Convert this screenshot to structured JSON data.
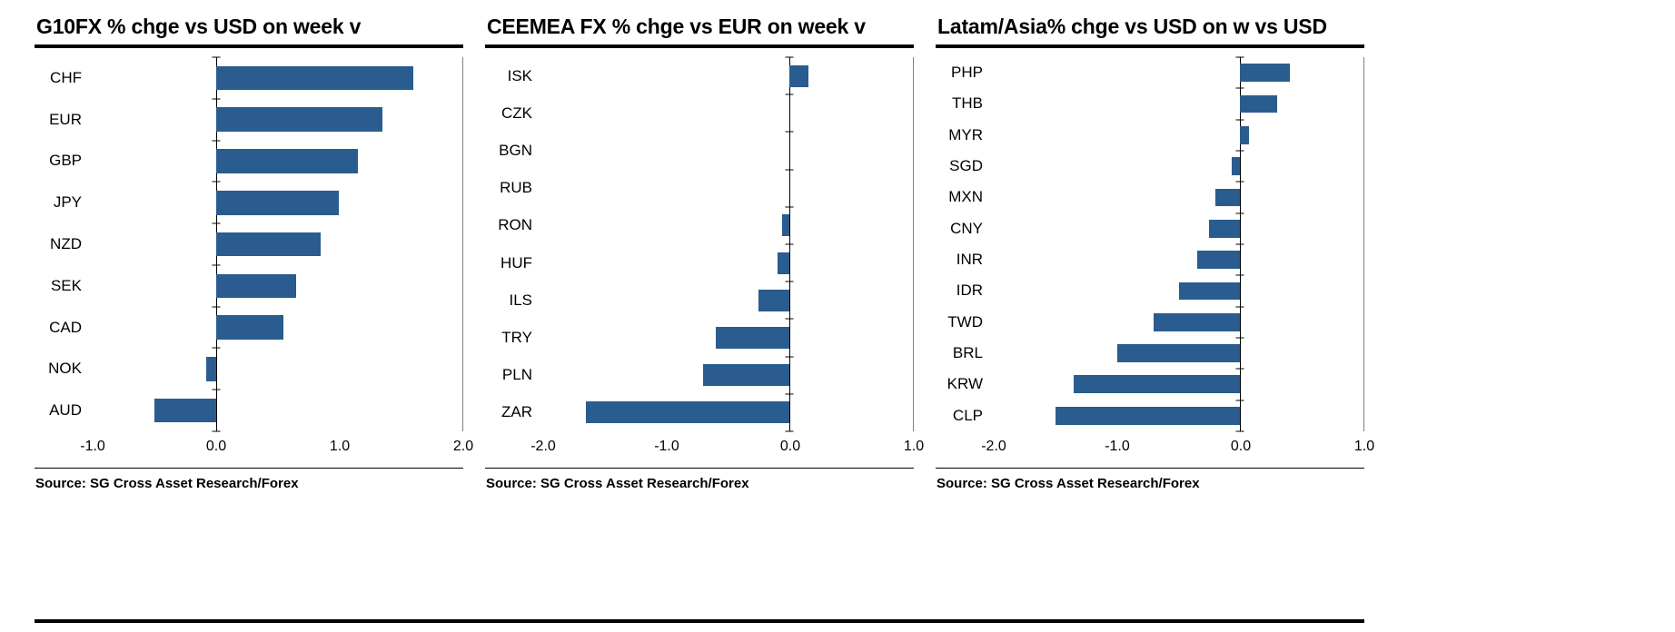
{
  "bar_color": "#2a5c8f",
  "axis_color": "#000000",
  "chart_data": [
    {
      "type": "bar",
      "orientation": "horizontal",
      "title": "G10FX % chge vs USD on week v",
      "categories": [
        "CHF",
        "EUR",
        "GBP",
        "JPY",
        "NZD",
        "SEK",
        "CAD",
        "NOK",
        "AUD"
      ],
      "values": [
        1.6,
        1.35,
        1.15,
        1.0,
        0.85,
        0.65,
        0.55,
        -0.08,
        -0.5
      ],
      "xlim": [
        -1.0,
        2.0
      ],
      "xticks": [
        -1.0,
        0.0,
        1.0,
        2.0
      ],
      "xtick_labels": [
        "-1.0",
        "0.0",
        "1.0",
        "2.0"
      ],
      "grid": false,
      "legend": false,
      "source": "Source: SG Cross Asset Research/Forex"
    },
    {
      "type": "bar",
      "orientation": "horizontal",
      "title": "CEEMEA FX % chge vs EUR on week v",
      "categories": [
        "ISK",
        "CZK",
        "BGN",
        "RUB",
        "RON",
        "HUF",
        "ILS",
        "TRY",
        "PLN",
        "ZAR"
      ],
      "values": [
        0.15,
        0.0,
        0.0,
        0.0,
        -0.06,
        -0.1,
        -0.25,
        -0.6,
        -0.7,
        -1.65
      ],
      "xlim": [
        -2.0,
        1.0
      ],
      "xticks": [
        -2.0,
        -1.0,
        0.0,
        1.0
      ],
      "xtick_labels": [
        "-2.0",
        "-1.0",
        "0.0",
        "1.0"
      ],
      "grid": false,
      "legend": false,
      "source": "Source: SG Cross Asset Research/Forex"
    },
    {
      "type": "bar",
      "orientation": "horizontal",
      "title": "Latam/Asia% chge vs USD on w vs USD",
      "categories": [
        "PHP",
        "THB",
        "MYR",
        "SGD",
        "MXN",
        "CNY",
        "INR",
        "IDR",
        "TWD",
        "BRL",
        "KRW",
        "CLP"
      ],
      "values": [
        0.4,
        0.3,
        0.07,
        -0.07,
        -0.2,
        -0.25,
        -0.35,
        -0.5,
        -0.7,
        -1.0,
        -1.35,
        -1.5
      ],
      "xlim": [
        -2.0,
        1.0
      ],
      "xticks": [
        -2.0,
        -1.0,
        0.0,
        1.0
      ],
      "xtick_labels": [
        "-2.0",
        "-1.0",
        "0.0",
        "1.0"
      ],
      "grid": false,
      "legend": false,
      "source": "Source: SG Cross Asset Research/Forex"
    }
  ]
}
